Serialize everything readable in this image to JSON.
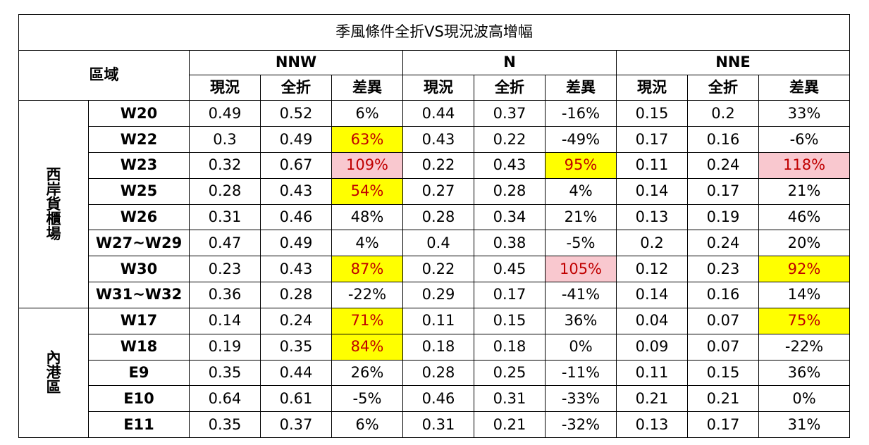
{
  "title": "季風條件全折VS現況波高增幅",
  "region_label": "區域",
  "directions": [
    "NNW",
    "N",
    "NNE"
  ],
  "sub_headers": [
    "現況",
    "全折",
    "差異"
  ],
  "highlight_colors": {
    "yellow": "#ffff00",
    "pink": "#f9c8cf",
    "highlight_text": "#c00000"
  },
  "groups": [
    {
      "label_chars": [
        "西",
        "岸",
        "貨",
        "櫃",
        "場"
      ],
      "rows": [
        {
          "station": "W20",
          "cells": [
            {
              "v": "0.49"
            },
            {
              "v": "0.52"
            },
            {
              "v": "6%"
            },
            {
              "v": "0.44"
            },
            {
              "v": "0.37"
            },
            {
              "v": "-16%"
            },
            {
              "v": "0.15"
            },
            {
              "v": "0.2"
            },
            {
              "v": "33%"
            }
          ]
        },
        {
          "station": "W22",
          "cells": [
            {
              "v": "0.3"
            },
            {
              "v": "0.49"
            },
            {
              "v": "63%",
              "hl": "yellow"
            },
            {
              "v": "0.43"
            },
            {
              "v": "0.22"
            },
            {
              "v": "-49%"
            },
            {
              "v": "0.17"
            },
            {
              "v": "0.16"
            },
            {
              "v": "-6%"
            }
          ]
        },
        {
          "station": "W23",
          "cells": [
            {
              "v": "0.32"
            },
            {
              "v": "0.67"
            },
            {
              "v": "109%",
              "hl": "pink"
            },
            {
              "v": "0.22"
            },
            {
              "v": "0.43"
            },
            {
              "v": "95%",
              "hl": "yellow"
            },
            {
              "v": "0.11"
            },
            {
              "v": "0.24"
            },
            {
              "v": "118%",
              "hl": "pink"
            }
          ]
        },
        {
          "station": "W25",
          "cells": [
            {
              "v": "0.28"
            },
            {
              "v": "0.43"
            },
            {
              "v": "54%",
              "hl": "yellow"
            },
            {
              "v": "0.27"
            },
            {
              "v": "0.28"
            },
            {
              "v": "4%"
            },
            {
              "v": "0.14"
            },
            {
              "v": "0.17"
            },
            {
              "v": "21%"
            }
          ]
        },
        {
          "station": "W26",
          "cells": [
            {
              "v": "0.31"
            },
            {
              "v": "0.46"
            },
            {
              "v": "48%"
            },
            {
              "v": "0.28"
            },
            {
              "v": "0.34"
            },
            {
              "v": "21%"
            },
            {
              "v": "0.13"
            },
            {
              "v": "0.19"
            },
            {
              "v": "46%"
            }
          ]
        },
        {
          "station": "W27~W29",
          "cells": [
            {
              "v": "0.47"
            },
            {
              "v": "0.49"
            },
            {
              "v": "4%"
            },
            {
              "v": "0.4"
            },
            {
              "v": "0.38"
            },
            {
              "v": "-5%"
            },
            {
              "v": "0.2"
            },
            {
              "v": "0.24"
            },
            {
              "v": "20%"
            }
          ]
        },
        {
          "station": "W30",
          "cells": [
            {
              "v": "0.23"
            },
            {
              "v": "0.43"
            },
            {
              "v": "87%",
              "hl": "yellow"
            },
            {
              "v": "0.22"
            },
            {
              "v": "0.45"
            },
            {
              "v": "105%",
              "hl": "pink"
            },
            {
              "v": "0.12"
            },
            {
              "v": "0.23"
            },
            {
              "v": "92%",
              "hl": "yellow"
            }
          ]
        },
        {
          "station": "W31~W32",
          "cells": [
            {
              "v": "0.36"
            },
            {
              "v": "0.28"
            },
            {
              "v": "-22%"
            },
            {
              "v": "0.29"
            },
            {
              "v": "0.17"
            },
            {
              "v": "-41%"
            },
            {
              "v": "0.14"
            },
            {
              "v": "0.16"
            },
            {
              "v": "14%"
            }
          ]
        }
      ]
    },
    {
      "label_chars": [
        "內",
        "港",
        "區"
      ],
      "rows": [
        {
          "station": "W17",
          "cells": [
            {
              "v": "0.14"
            },
            {
              "v": "0.24"
            },
            {
              "v": "71%",
              "hl": "yellow"
            },
            {
              "v": "0.11"
            },
            {
              "v": "0.15"
            },
            {
              "v": "36%"
            },
            {
              "v": "0.04"
            },
            {
              "v": "0.07"
            },
            {
              "v": "75%",
              "hl": "yellow"
            }
          ]
        },
        {
          "station": "W18",
          "cells": [
            {
              "v": "0.19"
            },
            {
              "v": "0.35"
            },
            {
              "v": "84%",
              "hl": "yellow"
            },
            {
              "v": "0.18"
            },
            {
              "v": "0.18"
            },
            {
              "v": "0%"
            },
            {
              "v": "0.09"
            },
            {
              "v": "0.07"
            },
            {
              "v": "-22%"
            }
          ]
        },
        {
          "station": "E9",
          "cells": [
            {
              "v": "0.35"
            },
            {
              "v": "0.44"
            },
            {
              "v": "26%"
            },
            {
              "v": "0.28"
            },
            {
              "v": "0.25"
            },
            {
              "v": "-11%"
            },
            {
              "v": "0.11"
            },
            {
              "v": "0.15"
            },
            {
              "v": "36%"
            }
          ]
        },
        {
          "station": "E10",
          "cells": [
            {
              "v": "0.64"
            },
            {
              "v": "0.61"
            },
            {
              "v": "-5%"
            },
            {
              "v": "0.46"
            },
            {
              "v": "0.31"
            },
            {
              "v": "-33%"
            },
            {
              "v": "0.21"
            },
            {
              "v": "0.21"
            },
            {
              "v": "0%"
            }
          ]
        },
        {
          "station": "E11",
          "cells": [
            {
              "v": "0.35"
            },
            {
              "v": "0.37"
            },
            {
              "v": "6%"
            },
            {
              "v": "0.31"
            },
            {
              "v": "0.21"
            },
            {
              "v": "-32%"
            },
            {
              "v": "0.13"
            },
            {
              "v": "0.17"
            },
            {
              "v": "31%"
            }
          ]
        }
      ]
    }
  ]
}
